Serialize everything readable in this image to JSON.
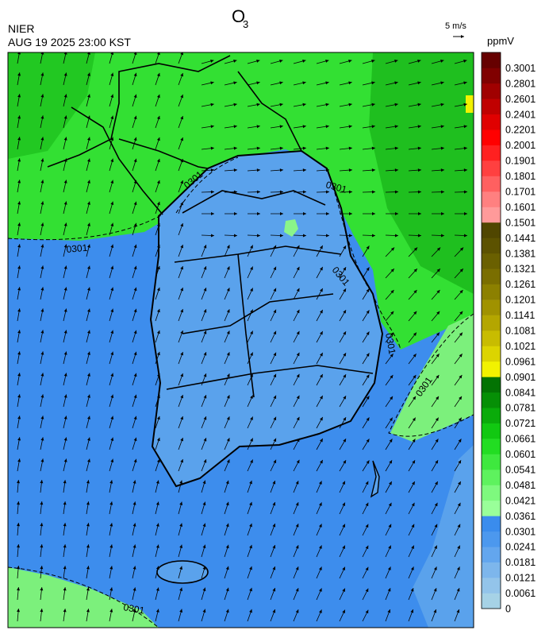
{
  "header": {
    "title": "O",
    "title_subscript": "3",
    "agency": "NIER",
    "timestamp": "AUG 19 2025 23:00 KST",
    "wind_scale": "5 m/s"
  },
  "colorbar": {
    "unit": "ppmV",
    "labels": [
      "0",
      "0.0061",
      "0.0121",
      "0.0181",
      "0.0241",
      "0.0301",
      "0.0361",
      "0.0421",
      "0.0481",
      "0.0541",
      "0.0601",
      "0.0661",
      "0.0721",
      "0.0781",
      "0.0841",
      "0.0901",
      "0.0961",
      "0.1021",
      "0.1081",
      "0.1141",
      "0.1201",
      "0.1261",
      "0.1321",
      "0.1381",
      "0.1441",
      "0.1501",
      "0.1601",
      "0.1701",
      "0.1801",
      "0.1901",
      "0.2001",
      "0.2201",
      "0.2401",
      "0.2601",
      "0.2801",
      "0.3001"
    ],
    "colors": [
      "#a6d2e6",
      "#93c4ea",
      "#7db6ec",
      "#63a6ee",
      "#4c98ee",
      "#3a8ced",
      "#99ff99",
      "#7ef97e",
      "#5ef25e",
      "#3ee83e",
      "#22dd22",
      "#11c811",
      "#0aab0a",
      "#068f06",
      "#037303",
      "#f2f200",
      "#dcd400",
      "#c8bc00",
      "#b4a600",
      "#a09200",
      "#8c8000",
      "#7a6e00",
      "#6a6000",
      "#5c5200",
      "#504600",
      "#ff9a9a",
      "#ff8080",
      "#ff6060",
      "#ff4040",
      "#ff2020",
      "#ff0000",
      "#e00000",
      "#c00000",
      "#a00000",
      "#800000",
      "#660000"
    ]
  },
  "map": {
    "contour_labels": [
      "0301",
      "0301",
      "0301",
      "0301",
      "0301",
      "0301",
      "0301"
    ]
  }
}
